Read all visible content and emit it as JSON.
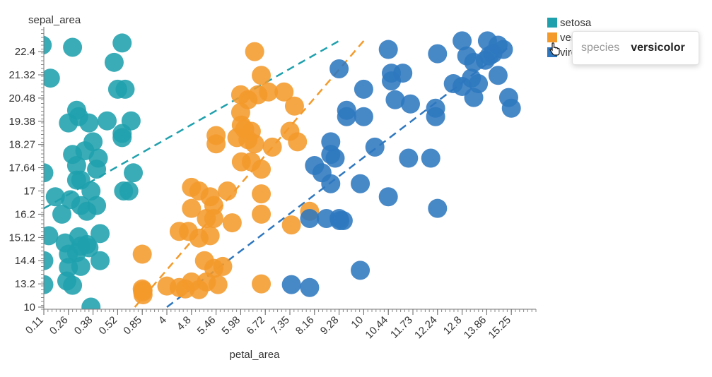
{
  "chart_data": {
    "type": "scatter",
    "xlabel": "petal_area",
    "ylabel": "sepal_area",
    "x_ticks": [
      "0.11",
      "0.26",
      "0.38",
      "0.52",
      "0.85",
      "4",
      "4.8",
      "5.46",
      "5.98",
      "6.72",
      "7.35",
      "8.16",
      "9.28",
      "10",
      "10.44",
      "11.73",
      "12.24",
      "12.8",
      "13.86",
      "15.25"
    ],
    "y_ticks": [
      "10",
      "13.2",
      "14.4",
      "15.12",
      "16.2",
      "17",
      "17.64",
      "18.27",
      "19.38",
      "20.48",
      "21.32",
      "22.4"
    ],
    "legend": {
      "placement": "top-right"
    },
    "series": [
      {
        "name": "setosa",
        "color": "#1fa0ad",
        "points": [
          [
            0.1,
            22.7
          ],
          [
            0.28,
            22.6
          ],
          [
            0.58,
            22.8
          ],
          [
            0.15,
            21.2
          ],
          [
            0.5,
            21.9
          ],
          [
            0.52,
            20.8
          ],
          [
            0.62,
            20.8
          ],
          [
            0.3,
            19.9
          ],
          [
            0.26,
            19.3
          ],
          [
            0.31,
            19.6
          ],
          [
            0.36,
            19.3
          ],
          [
            0.46,
            19.4
          ],
          [
            0.58,
            18.8
          ],
          [
            0.58,
            18.6
          ],
          [
            0.7,
            19.4
          ],
          [
            0.28,
            18.0
          ],
          [
            0.34,
            18.1
          ],
          [
            0.38,
            18.4
          ],
          [
            0.3,
            17.7
          ],
          [
            0.41,
            17.9
          ],
          [
            0.3,
            17.3
          ],
          [
            0.32,
            17.3
          ],
          [
            0.37,
            17.0
          ],
          [
            0.4,
            17.6
          ],
          [
            0.11,
            17.5
          ],
          [
            0.73,
            17.5
          ],
          [
            0.18,
            16.8
          ],
          [
            0.27,
            16.7
          ],
          [
            0.32,
            16.5
          ],
          [
            0.4,
            16.5
          ],
          [
            0.22,
            16.2
          ],
          [
            0.35,
            16.3
          ],
          [
            0.6,
            17.0
          ],
          [
            0.67,
            17.0
          ],
          [
            0.14,
            15.2
          ],
          [
            0.24,
            14.95
          ],
          [
            0.31,
            15.15
          ],
          [
            0.35,
            14.9
          ],
          [
            0.42,
            15.3
          ],
          [
            0.26,
            14.6
          ],
          [
            0.3,
            14.65
          ],
          [
            0.32,
            14.85
          ],
          [
            0.36,
            14.8
          ],
          [
            0.11,
            14.4
          ],
          [
            0.26,
            14.05
          ],
          [
            0.32,
            14.1
          ],
          [
            0.42,
            14.4
          ],
          [
            0.25,
            13.35
          ],
          [
            0.28,
            13.0
          ],
          [
            0.11,
            13.1
          ],
          [
            0.37,
            10.0
          ]
        ]
      },
      {
        "name": "versicolor",
        "color": "#f49a2b",
        "points": [
          [
            6.4,
            22.4
          ],
          [
            6.6,
            21.3
          ],
          [
            5.98,
            20.6
          ],
          [
            6.2,
            20.4
          ],
          [
            6.5,
            20.6
          ],
          [
            6.8,
            20.7
          ],
          [
            7.2,
            20.7
          ],
          [
            7.5,
            20.1
          ],
          [
            5.98,
            19.8
          ],
          [
            6.0,
            19.2
          ],
          [
            6.1,
            19.0
          ],
          [
            6.3,
            18.9
          ],
          [
            7.35,
            18.9
          ],
          [
            5.46,
            18.7
          ],
          [
            5.9,
            18.6
          ],
          [
            6.2,
            18.5
          ],
          [
            6.4,
            18.3
          ],
          [
            6.9,
            18.2
          ],
          [
            7.6,
            18.4
          ],
          [
            5.46,
            18.3
          ],
          [
            6.0,
            17.8
          ],
          [
            6.3,
            17.8
          ],
          [
            6.6,
            17.6
          ],
          [
            4.8,
            17.1
          ],
          [
            5.0,
            17.0
          ],
          [
            5.3,
            16.8
          ],
          [
            5.4,
            16.5
          ],
          [
            5.7,
            17.0
          ],
          [
            6.6,
            16.9
          ],
          [
            4.8,
            16.4
          ],
          [
            5.2,
            16.0
          ],
          [
            5.4,
            16.0
          ],
          [
            5.8,
            15.8
          ],
          [
            6.6,
            16.2
          ],
          [
            7.4,
            15.7
          ],
          [
            4.4,
            15.4
          ],
          [
            4.7,
            15.4
          ],
          [
            5.0,
            15.1
          ],
          [
            5.3,
            15.2
          ],
          [
            8.0,
            16.3
          ],
          [
            0.85,
            14.6
          ],
          [
            5.15,
            14.4
          ],
          [
            5.4,
            14.0
          ],
          [
            5.6,
            14.1
          ],
          [
            5.2,
            13.3
          ],
          [
            5.5,
            13.1
          ],
          [
            4.8,
            13.3
          ],
          [
            6.6,
            13.2
          ],
          [
            4.0,
            12.9
          ],
          [
            4.4,
            12.7
          ],
          [
            0.85,
            12.5
          ],
          [
            0.95,
            12.3
          ],
          [
            4.6,
            12.5
          ],
          [
            5.0,
            12.4
          ],
          [
            0.9,
            12.1
          ],
          [
            0.95,
            11.7
          ]
        ]
      },
      {
        "name": "virginica",
        "color": "#2e77bf",
        "points": [
          [
            12.8,
            22.9
          ],
          [
            13.9,
            22.9
          ],
          [
            14.5,
            22.7
          ],
          [
            10.44,
            22.5
          ],
          [
            12.24,
            22.3
          ],
          [
            13.0,
            22.2
          ],
          [
            13.3,
            21.9
          ],
          [
            13.8,
            22.0
          ],
          [
            14.0,
            22.2
          ],
          [
            14.2,
            22.3
          ],
          [
            14.8,
            22.5
          ],
          [
            9.28,
            21.6
          ],
          [
            10.6,
            21.4
          ],
          [
            11.2,
            21.4
          ],
          [
            10.6,
            21.1
          ],
          [
            12.6,
            21.0
          ],
          [
            12.8,
            20.9
          ],
          [
            13.5,
            21.0
          ],
          [
            13.2,
            21.2
          ],
          [
            14.5,
            21.3
          ],
          [
            10.0,
            20.8
          ],
          [
            10.8,
            20.4
          ],
          [
            11.6,
            20.2
          ],
          [
            12.2,
            20.0
          ],
          [
            13.3,
            20.5
          ],
          [
            15.1,
            20.5
          ],
          [
            15.25,
            20.0
          ],
          [
            9.5,
            19.9
          ],
          [
            9.5,
            19.6
          ],
          [
            10.0,
            19.6
          ],
          [
            12.2,
            19.6
          ],
          [
            8.16,
            17.7
          ],
          [
            8.9,
            18.4
          ],
          [
            8.9,
            18.0
          ],
          [
            9.1,
            17.9
          ],
          [
            10.2,
            18.2
          ],
          [
            11.5,
            17.9
          ],
          [
            12.1,
            17.9
          ],
          [
            8.5,
            17.5
          ],
          [
            8.9,
            17.2
          ],
          [
            9.9,
            17.2
          ],
          [
            10.44,
            16.8
          ],
          [
            8.0,
            16.0
          ],
          [
            8.7,
            16.0
          ],
          [
            9.28,
            16.0
          ],
          [
            9.4,
            15.9
          ],
          [
            12.24,
            16.4
          ],
          [
            7.4,
            13.1
          ],
          [
            8.0,
            12.7
          ],
          [
            9.9,
            13.9
          ],
          [
            9.3,
            15.9
          ]
        ]
      }
    ],
    "trend_lines": [
      {
        "series": "setosa",
        "color": "#1fa0ad",
        "from": [
          0.11,
          16.4
        ],
        "to": [
          9.28,
          22.9
        ]
      },
      {
        "series": "versicolor",
        "color": "#f49a2b",
        "from": [
          0.75,
          10.0
        ],
        "to": [
          10.0,
          22.9
        ]
      },
      {
        "series": "virginica",
        "color": "#2e77bf",
        "from": [
          4.0,
          10.0
        ],
        "to": [
          15.25,
          22.7
        ]
      }
    ]
  },
  "tooltip": {
    "key": "species",
    "value": "versicolor"
  },
  "legend_items": [
    {
      "label": "setosa",
      "color": "#1fa0ad"
    },
    {
      "label": "versicolor",
      "color": "#f49a2b"
    },
    {
      "label": "virginica",
      "color": "#2e77bf"
    }
  ]
}
